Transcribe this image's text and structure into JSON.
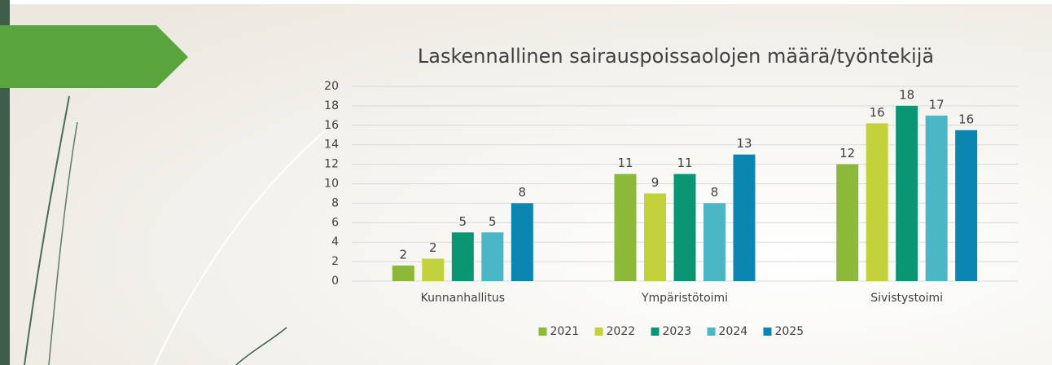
{
  "chart_data": {
    "type": "bar",
    "title": "Laskennallinen sairauspoissaolojen määrä/työntekijä",
    "categories": [
      "Kunnanhallitus",
      "Ympäristötoimi",
      "Sivistystoimi"
    ],
    "series": [
      {
        "name": "2021",
        "color": "#8db93a",
        "values": [
          1.6,
          11,
          12
        ],
        "value_labels": [
          "2",
          "11",
          "12"
        ]
      },
      {
        "name": "2022",
        "color": "#c3d13b",
        "values": [
          2.3,
          9,
          16.2
        ],
        "value_labels": [
          "2",
          "9",
          "16"
        ]
      },
      {
        "name": "2023",
        "color": "#0a9673",
        "values": [
          5,
          11,
          18
        ],
        "value_labels": [
          "5",
          "11",
          "18"
        ]
      },
      {
        "name": "2024",
        "color": "#4bb6c5",
        "values": [
          5,
          8,
          17
        ],
        "value_labels": [
          "5",
          "8",
          "17"
        ]
      },
      {
        "name": "2025",
        "color": "#0b86b1",
        "values": [
          8,
          13,
          15.5
        ],
        "value_labels": [
          "8",
          "13",
          "16"
        ]
      }
    ],
    "ylim": [
      0,
      20
    ],
    "yticks": [
      0,
      2,
      4,
      6,
      8,
      10,
      12,
      14,
      16,
      18,
      20
    ],
    "grid": true,
    "legend": "bottom"
  }
}
